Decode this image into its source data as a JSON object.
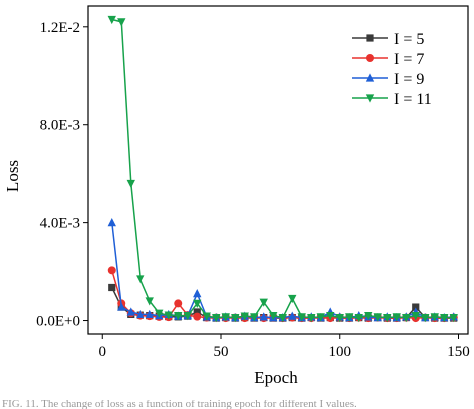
{
  "chart_data": {
    "type": "line",
    "xlabel": "Epoch",
    "ylabel": "Loss",
    "xlim": [
      -6,
      154
    ],
    "ylim": [
      -0.00055,
      0.01285
    ],
    "xticks": [
      0,
      50,
      100,
      150
    ],
    "xtick_labels": [
      "0",
      "50",
      "100",
      "150"
    ],
    "yticks": [
      0,
      0.004,
      0.008,
      0.012
    ],
    "ytick_labels": [
      "0.0E+0",
      "4.0E-3",
      "8.0E-3",
      "1.2E-2"
    ],
    "legend_position": "top-right",
    "series": [
      {
        "name": "I = 5",
        "color": "#3a3a3a",
        "marker": "square",
        "x": [
          4,
          8,
          12,
          16,
          20,
          24,
          28,
          32,
          36,
          40,
          44,
          48,
          52,
          56,
          60,
          64,
          68,
          72,
          76,
          80,
          84,
          88,
          92,
          96,
          100,
          104,
          108,
          112,
          116,
          120,
          124,
          128,
          132,
          136,
          140,
          144,
          148
        ],
        "y": [
          0.00135,
          0.00055,
          0.00025,
          0.00022,
          0.0002,
          0.00018,
          0.00016,
          0.00015,
          0.00018,
          0.00035,
          0.00012,
          0.0001,
          0.00012,
          0.0001,
          0.00012,
          0.0001,
          0.00012,
          0.0001,
          0.0001,
          0.00012,
          0.0001,
          0.00012,
          0.0001,
          0.00012,
          0.0001,
          0.0001,
          0.00012,
          0.0001,
          0.00012,
          0.0001,
          0.0001,
          0.00012,
          0.00055,
          0.00012,
          0.0001,
          0.0001,
          0.0001
        ]
      },
      {
        "name": "I = 7",
        "color": "#e8322e",
        "marker": "circle",
        "x": [
          4,
          8,
          12,
          16,
          20,
          24,
          28,
          32,
          36,
          40,
          44,
          48,
          52,
          56,
          60,
          64,
          68,
          72,
          76,
          80,
          84,
          88,
          92,
          96,
          100,
          104,
          108,
          112,
          116,
          120,
          124,
          128,
          132,
          136,
          140,
          144,
          148
        ],
        "y": [
          0.00205,
          0.0007,
          0.0003,
          0.0002,
          0.00018,
          0.00015,
          0.00014,
          0.0007,
          0.00022,
          0.00016,
          0.00012,
          0.00012,
          0.0001,
          0.00012,
          0.0001,
          0.00012,
          0.0001,
          0.00012,
          0.0001,
          0.00012,
          0.0001,
          0.0001,
          0.00012,
          0.0001,
          0.00012,
          0.0001,
          0.00012,
          0.0001,
          0.00012,
          0.0001,
          0.0001,
          0.00012,
          0.0001,
          0.00012,
          0.0001,
          0.0001,
          0.00012
        ]
      },
      {
        "name": "I = 9",
        "color": "#1f5fd6",
        "marker": "triangle-up",
        "x": [
          4,
          8,
          12,
          16,
          20,
          24,
          28,
          32,
          36,
          40,
          44,
          48,
          52,
          56,
          60,
          64,
          68,
          72,
          76,
          80,
          84,
          88,
          92,
          96,
          100,
          104,
          108,
          112,
          116,
          120,
          124,
          128,
          132,
          136,
          140,
          144,
          148
        ],
        "y": [
          0.004,
          0.00055,
          0.00035,
          0.00025,
          0.00025,
          0.0002,
          0.00025,
          0.00018,
          0.0002,
          0.0011,
          0.00015,
          0.00012,
          0.00015,
          0.00012,
          0.00018,
          0.00012,
          0.00015,
          0.00012,
          0.00012,
          0.00018,
          0.00012,
          0.00015,
          0.00012,
          0.00035,
          0.00015,
          0.00012,
          0.0002,
          0.00015,
          0.00012,
          0.00015,
          0.00012,
          0.00015,
          0.00035,
          0.00012,
          0.00015,
          0.00012,
          0.00015
        ]
      },
      {
        "name": "I = 11",
        "color": "#17a24b",
        "marker": "triangle-down",
        "x": [
          4,
          8,
          12,
          16,
          20,
          24,
          28,
          32,
          36,
          40,
          44,
          48,
          52,
          56,
          60,
          64,
          68,
          72,
          76,
          80,
          84,
          88,
          92,
          96,
          100,
          104,
          108,
          112,
          116,
          120,
          124,
          128,
          132,
          136,
          140,
          144,
          148
        ],
        "y": [
          0.0123,
          0.0122,
          0.0056,
          0.0017,
          0.0008,
          0.0003,
          0.00022,
          0.0002,
          0.0002,
          0.0007,
          0.00018,
          0.00012,
          0.00015,
          0.00012,
          0.00018,
          0.00015,
          0.00075,
          0.0002,
          0.00012,
          0.0009,
          0.00015,
          0.00012,
          0.00015,
          0.0002,
          0.00012,
          0.00015,
          0.00012,
          0.0002,
          0.00015,
          0.00012,
          0.00015,
          0.00012,
          0.0002,
          0.00012,
          0.00015,
          0.00012,
          0.00012
        ]
      }
    ]
  },
  "caption": "FIG. 11. The change of loss as a function of training epoch for different I values."
}
